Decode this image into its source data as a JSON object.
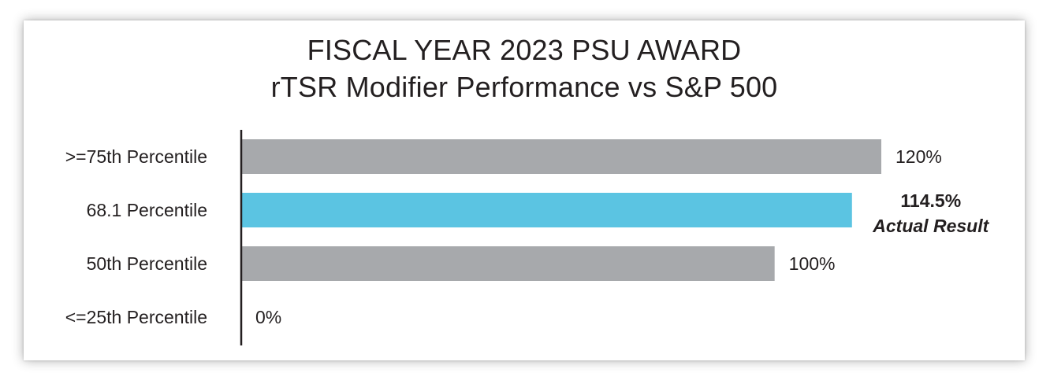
{
  "chart_data": {
    "type": "bar",
    "orientation": "horizontal",
    "title": "FISCAL YEAR 2023 PSU AWARD",
    "subtitle": "rTSR Modifier Performance vs S&P 500",
    "categories": [
      ">=75th Percentile",
      "68.1 Percentile",
      "50th Percentile",
      "<=25th Percentile"
    ],
    "values": [
      120,
      114.5,
      100,
      0
    ],
    "value_labels": [
      "120%",
      "114.5%",
      "100%",
      "0%"
    ],
    "highlight_index": 1,
    "highlight_note": "Actual Result",
    "xlim": [
      0,
      120
    ],
    "grid": false,
    "colors": {
      "bar": "#a7a9ac",
      "highlight": "#5bc4e2",
      "axis": "#231f20",
      "text": "#231f20"
    }
  }
}
